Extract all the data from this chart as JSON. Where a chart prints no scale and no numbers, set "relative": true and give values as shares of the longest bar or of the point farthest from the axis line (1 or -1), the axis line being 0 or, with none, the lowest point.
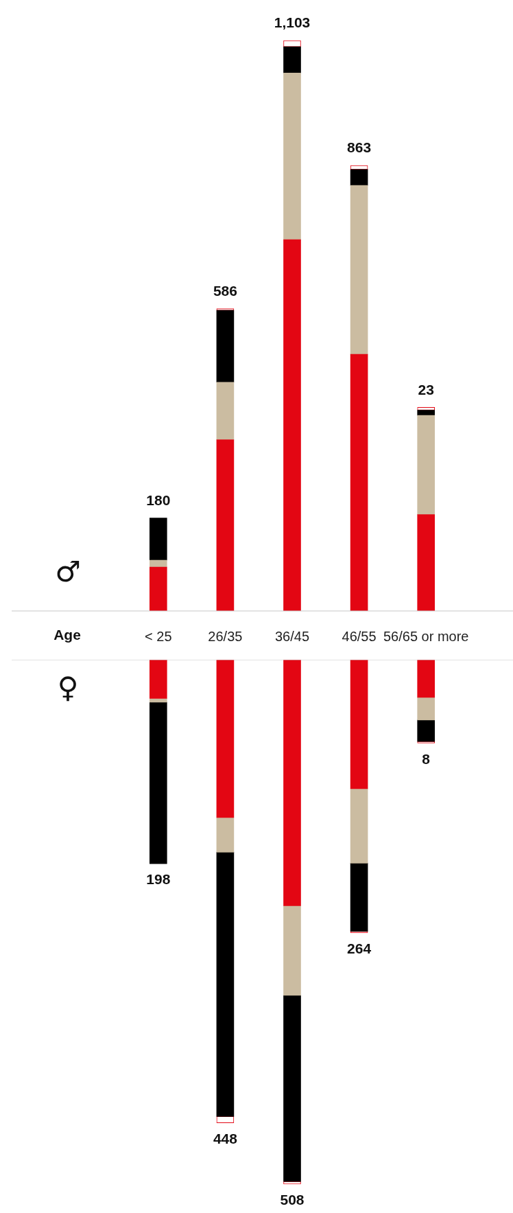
{
  "chart_data": [
    {
      "type": "bar",
      "title": "♂",
      "xlabel": "Age",
      "categories": [
        "< 25",
        "26/35",
        "36/45",
        "46/55",
        "56/65 or more"
      ],
      "stacked": true,
      "relative": true,
      "tick_labels": "x",
      "legend": false,
      "grid": false,
      "series": [
        {
          "color": "#e30613",
          "values": [
            0.077,
            0.3,
            0.651,
            0.45,
            0.169
          ]
        },
        {
          "color": "#cbbca1",
          "values": [
            0.012,
            0.101,
            0.292,
            0.296,
            0.174
          ]
        },
        {
          "color": "#000000",
          "values": [
            0.074,
            0.126,
            0.046,
            0.028,
            0.009
          ]
        },
        {
          "color": "#ffffff",
          "values": [
            0,
            0.003,
            0.011,
            0.007,
            0.005
          ]
        }
      ],
      "annotations": [
        {
          "text": "180",
          "x": "< 25",
          "y": 0.163
        },
        {
          "text": "586",
          "x": "26/35",
          "y": 0.53
        },
        {
          "text": "1,103",
          "x": "36/45",
          "y": 1
        },
        {
          "text": "863",
          "x": "46/55",
          "y": 0.781
        },
        {
          "text": "23",
          "x": "56/65 or more",
          "y": 0.357
        }
      ]
    },
    {
      "type": "bar",
      "title": "♀",
      "categories": [
        "< 25",
        "26/35",
        "36/45",
        "46/55",
        "56/65 or more"
      ],
      "stacked": true,
      "relative": true,
      "tick_labels": false,
      "legend": false,
      "grid": false,
      "series": [
        {
          "color": "#e30613",
          "values": [
            -0.074,
            -0.301,
            -0.469,
            -0.246,
            -0.072
          ]
        },
        {
          "color": "#cbbca1",
          "values": [
            -0.007,
            -0.066,
            -0.171,
            -0.142,
            -0.043
          ]
        },
        {
          "color": "#000000",
          "values": [
            -0.308,
            -0.504,
            -0.355,
            -0.13,
            -0.041
          ]
        },
        {
          "color": "#ffffff",
          "values": [
            0,
            -0.012,
            -0.005,
            -0.003,
            -0.003
          ]
        }
      ],
      "annotations": [
        {
          "text": "198",
          "x": "< 25",
          "y": -0.389
        },
        {
          "text": "448",
          "x": "26/35",
          "y": -0.883
        },
        {
          "text": "508",
          "x": "36/45",
          "y": -1
        },
        {
          "text": "264",
          "x": "46/55",
          "y": -0.521
        },
        {
          "text": "8",
          "x": "56/65 or more",
          "y": -0.159
        }
      ]
    }
  ]
}
